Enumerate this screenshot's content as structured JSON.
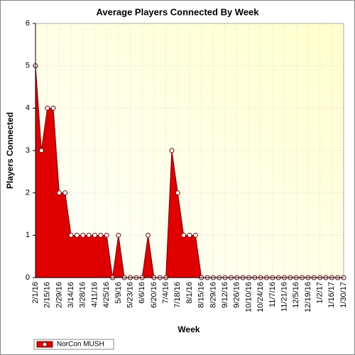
{
  "chart_data": {
    "type": "area",
    "title": "Average Players Connected By Week",
    "x_label": "Week",
    "y_label": "Players Connected",
    "categories": [
      "2/1/16",
      null,
      "2/15/16",
      null,
      "2/29/16",
      null,
      "3/14/16",
      null,
      "3/28/16",
      null,
      "4/11/16",
      null,
      "4/25/16",
      null,
      "5/9/16",
      null,
      "5/23/16",
      null,
      "6/6/16",
      null,
      "6/20/16",
      null,
      "7/4/16",
      null,
      "7/18/16",
      null,
      "8/1/16",
      null,
      "8/15/16",
      null,
      "8/29/16",
      null,
      "9/12/16",
      null,
      "9/26/16",
      null,
      "10/10/16",
      null,
      "10/24/16",
      null,
      "11/7/16",
      null,
      "11/21/16",
      null,
      "12/5/16",
      null,
      "12/19/16",
      null,
      "1/2/17",
      null,
      "1/16/17",
      null,
      "1/30/17"
    ],
    "series": [
      {
        "name": "NorCon MUSH",
        "color": "#e00000",
        "values": [
          5,
          3,
          4,
          4,
          2,
          2,
          1,
          1,
          1,
          1,
          1,
          1,
          1,
          0,
          1,
          0,
          0,
          0,
          0,
          1,
          0,
          0,
          0,
          3,
          2,
          1,
          1,
          1,
          0,
          0,
          0,
          0,
          0,
          0,
          0,
          0,
          0,
          0,
          0,
          0,
          0,
          0,
          0,
          0,
          0,
          0,
          0,
          0,
          0,
          0,
          0,
          0,
          0
        ]
      }
    ],
    "ylim": [
      0,
      6
    ],
    "yticks": [
      0,
      1,
      2,
      3,
      4,
      5,
      6
    ],
    "grid": true,
    "legend": "bottom-left"
  }
}
